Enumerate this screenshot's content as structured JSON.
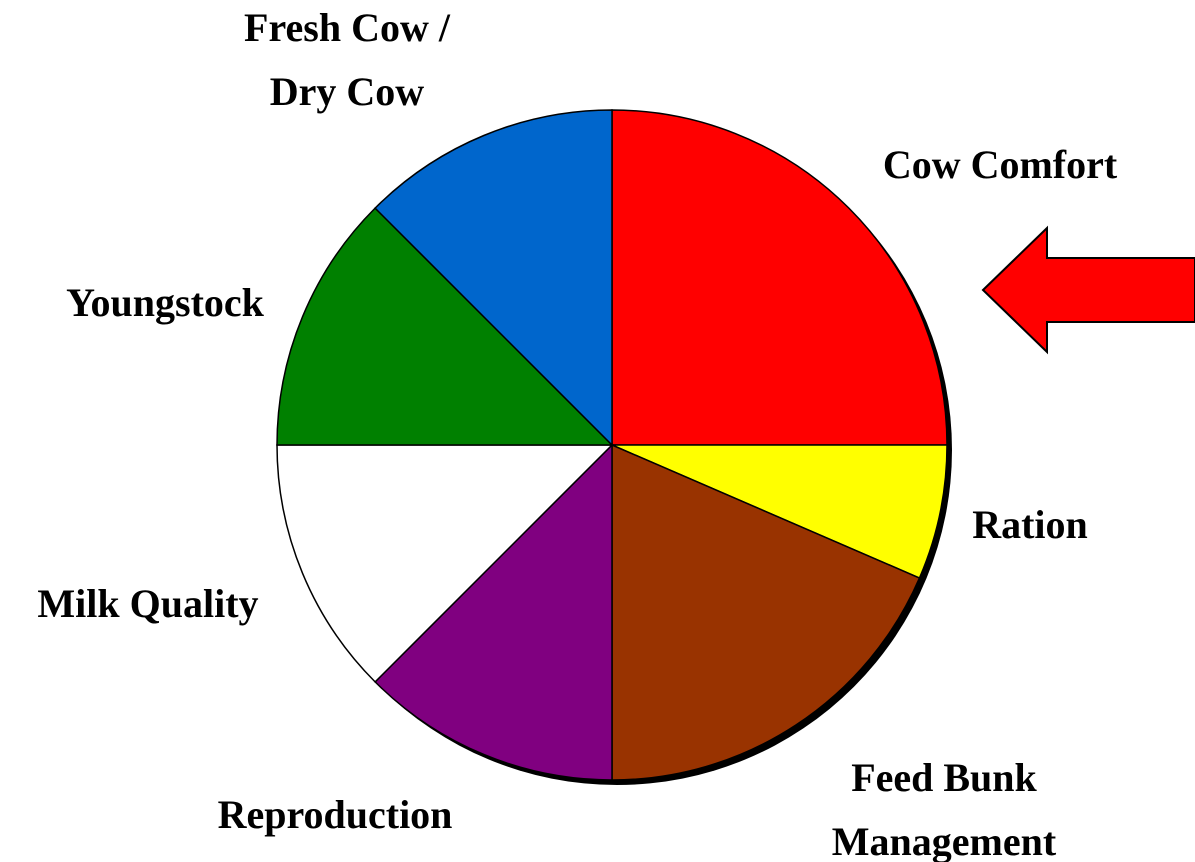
{
  "chart_data": {
    "type": "pie",
    "categories": [
      "Cow Comfort",
      "Ration",
      "Feed Bunk Management",
      "Reproduction",
      "Milk Quality",
      "Youngstock",
      "Fresh Cow / Dry Cow"
    ],
    "values": [
      25,
      6.5,
      18.5,
      12.5,
      12.5,
      12.5,
      12.5
    ],
    "colors": [
      "#ff0000",
      "#ffff00",
      "#993300",
      "#800080",
      "#ffffff",
      "#008000",
      "#0066cc"
    ]
  }
}
